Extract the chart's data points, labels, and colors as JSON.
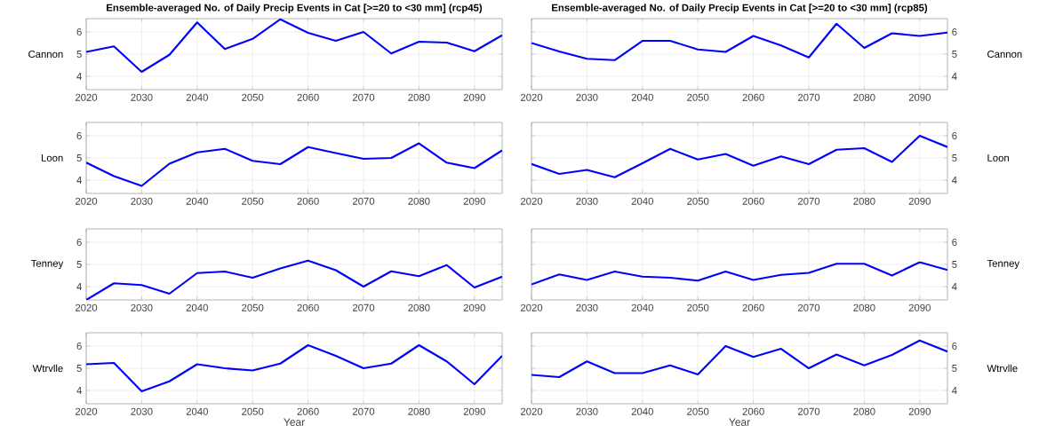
{
  "chart_data": [
    {
      "type": "line",
      "title": "Ensemble-averaged No. of Daily Precip Events in Cat [>=20 to <30 mm] (rcp45)",
      "ylabel": "Cannon",
      "grid": true,
      "xlim": [
        2020,
        2095
      ],
      "ylim": [
        3.4,
        6.6
      ],
      "xticks": [
        2020,
        2030,
        2040,
        2050,
        2060,
        2070,
        2080,
        2090
      ],
      "yticks": [
        4,
        5,
        6
      ],
      "x": [
        2020,
        2025,
        2030,
        2035,
        2040,
        2045,
        2050,
        2055,
        2060,
        2065,
        2070,
        2075,
        2080,
        2085,
        2090,
        2095
      ],
      "series": [
        {
          "color": "#0000ff",
          "values": [
            5.1,
            5.35,
            4.2,
            4.97,
            6.43,
            5.23,
            5.69,
            6.57,
            5.96,
            5.6,
            6.0,
            5.03,
            5.56,
            5.52,
            5.13,
            5.85
          ]
        }
      ]
    },
    {
      "type": "line",
      "title": "Ensemble-averaged No. of Daily Precip Events in Cat [>=20 to <30 mm] (rcp85)",
      "ylabel": "Cannon",
      "grid": true,
      "xlim": [
        2020,
        2095
      ],
      "ylim": [
        3.4,
        6.6
      ],
      "xticks": [
        2020,
        2030,
        2040,
        2050,
        2060,
        2070,
        2080,
        2090
      ],
      "yticks": [
        4,
        5,
        6
      ],
      "x": [
        2020,
        2025,
        2030,
        2035,
        2040,
        2045,
        2050,
        2055,
        2060,
        2065,
        2070,
        2075,
        2080,
        2085,
        2090,
        2095
      ],
      "series": [
        {
          "color": "#0000ff",
          "values": [
            5.5,
            5.12,
            4.79,
            4.73,
            5.6,
            5.6,
            5.21,
            5.1,
            5.82,
            5.39,
            4.85,
            6.37,
            5.28,
            5.94,
            5.82,
            5.97
          ]
        }
      ]
    },
    {
      "type": "line",
      "ylabel": "Loon",
      "grid": true,
      "xlim": [
        2020,
        2095
      ],
      "ylim": [
        3.4,
        6.6
      ],
      "xticks": [
        2020,
        2030,
        2040,
        2050,
        2060,
        2070,
        2080,
        2090
      ],
      "yticks": [
        4,
        5,
        6
      ],
      "x": [
        2020,
        2025,
        2030,
        2035,
        2040,
        2045,
        2050,
        2055,
        2060,
        2065,
        2070,
        2075,
        2080,
        2085,
        2090,
        2095
      ],
      "series": [
        {
          "color": "#0000ff",
          "values": [
            4.79,
            4.18,
            3.74,
            4.74,
            5.25,
            5.41,
            4.87,
            4.72,
            5.49,
            5.22,
            4.96,
            5.0,
            5.66,
            4.79,
            4.54,
            5.34
          ]
        }
      ]
    },
    {
      "type": "line",
      "ylabel": "Loon",
      "grid": true,
      "xlim": [
        2020,
        2095
      ],
      "ylim": [
        3.4,
        6.6
      ],
      "xticks": [
        2020,
        2030,
        2040,
        2050,
        2060,
        2070,
        2080,
        2090
      ],
      "yticks": [
        4,
        5,
        6
      ],
      "x": [
        2020,
        2025,
        2030,
        2035,
        2040,
        2045,
        2050,
        2055,
        2060,
        2065,
        2070,
        2075,
        2080,
        2085,
        2090,
        2095
      ],
      "series": [
        {
          "color": "#0000ff",
          "values": [
            4.73,
            4.28,
            4.46,
            4.13,
            4.76,
            5.41,
            4.93,
            5.18,
            4.65,
            5.07,
            4.72,
            5.37,
            5.44,
            4.82,
            6.0,
            5.49
          ]
        }
      ]
    },
    {
      "type": "line",
      "ylabel": "Tenney",
      "grid": true,
      "xlim": [
        2020,
        2095
      ],
      "ylim": [
        3.4,
        6.6
      ],
      "xticks": [
        2020,
        2030,
        2040,
        2050,
        2060,
        2070,
        2080,
        2090
      ],
      "yticks": [
        4,
        5,
        6
      ],
      "x": [
        2020,
        2025,
        2030,
        2035,
        2040,
        2045,
        2050,
        2055,
        2060,
        2065,
        2070,
        2075,
        2080,
        2085,
        2090,
        2095
      ],
      "series": [
        {
          "color": "#0000ff",
          "values": [
            3.4,
            4.15,
            4.07,
            3.68,
            4.61,
            4.68,
            4.4,
            4.82,
            5.17,
            4.74,
            4.0,
            4.69,
            4.47,
            4.97,
            3.96,
            4.45
          ]
        }
      ]
    },
    {
      "type": "line",
      "ylabel": "Tenney",
      "grid": true,
      "xlim": [
        2020,
        2095
      ],
      "ylim": [
        3.4,
        6.6
      ],
      "xticks": [
        2020,
        2030,
        2040,
        2050,
        2060,
        2070,
        2080,
        2090
      ],
      "yticks": [
        4,
        5,
        6
      ],
      "x": [
        2020,
        2025,
        2030,
        2035,
        2040,
        2045,
        2050,
        2055,
        2060,
        2065,
        2070,
        2075,
        2080,
        2085,
        2090,
        2095
      ],
      "series": [
        {
          "color": "#0000ff",
          "values": [
            4.1,
            4.55,
            4.3,
            4.68,
            4.45,
            4.4,
            4.27,
            4.68,
            4.3,
            4.53,
            4.62,
            5.03,
            5.03,
            4.5,
            5.1,
            4.75
          ]
        }
      ]
    },
    {
      "type": "line",
      "xlabel": "Year",
      "ylabel": "Wtrvlle",
      "grid": true,
      "xlim": [
        2020,
        2095
      ],
      "ylim": [
        3.4,
        6.6
      ],
      "xticks": [
        2020,
        2030,
        2040,
        2050,
        2060,
        2070,
        2080,
        2090
      ],
      "yticks": [
        4,
        5,
        6
      ],
      "x": [
        2020,
        2025,
        2030,
        2035,
        2040,
        2045,
        2050,
        2055,
        2060,
        2065,
        2070,
        2075,
        2080,
        2085,
        2090,
        2095
      ],
      "series": [
        {
          "color": "#0000ff",
          "values": [
            5.18,
            5.24,
            3.96,
            4.41,
            5.18,
            5.0,
            4.9,
            5.21,
            6.04,
            5.56,
            5.0,
            5.21,
            6.04,
            5.31,
            4.28,
            5.56
          ]
        }
      ]
    },
    {
      "type": "line",
      "xlabel": "Year",
      "ylabel": "Wtrvlle",
      "grid": true,
      "xlim": [
        2020,
        2095
      ],
      "ylim": [
        3.4,
        6.6
      ],
      "xticks": [
        2020,
        2030,
        2040,
        2050,
        2060,
        2070,
        2080,
        2090
      ],
      "yticks": [
        4,
        5,
        6
      ],
      "x": [
        2020,
        2025,
        2030,
        2035,
        2040,
        2045,
        2050,
        2055,
        2060,
        2065,
        2070,
        2075,
        2080,
        2085,
        2090,
        2095
      ],
      "series": [
        {
          "color": "#0000ff",
          "values": [
            4.7,
            4.6,
            5.31,
            4.78,
            4.78,
            5.13,
            4.72,
            6.0,
            5.51,
            5.88,
            5.0,
            5.62,
            5.13,
            5.6,
            6.25,
            5.75
          ]
        }
      ]
    }
  ]
}
